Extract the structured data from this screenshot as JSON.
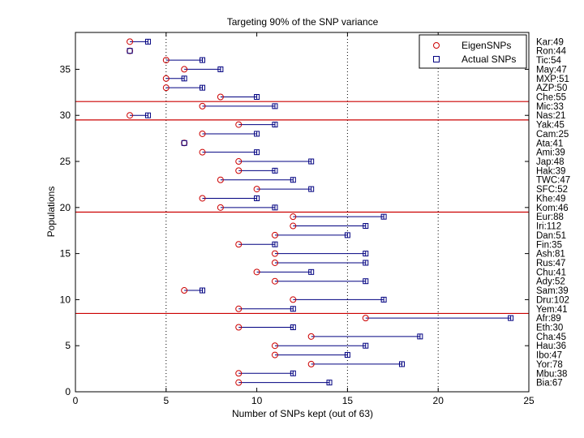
{
  "chart_data": {
    "type": "scatter",
    "title": "Targeting 90% of the SNP variance",
    "xlabel": "Number of SNPs kept (out of 63)",
    "ylabel": "Populations",
    "xlim": [
      0,
      25
    ],
    "ylim": [
      0,
      39
    ],
    "x_ticks": [
      "0",
      "5",
      "10",
      "15",
      "20",
      "25"
    ],
    "y_ticks": [
      "0",
      "5",
      "10",
      "15",
      "20",
      "25",
      "30",
      "35"
    ],
    "legend": {
      "placement": "top-right",
      "entries": [
        {
          "label": "EigenSNPs",
          "marker": "circle",
          "color": "#cc0000"
        },
        {
          "label": "Actual SNPs",
          "marker": "square",
          "color": "#000080"
        }
      ]
    },
    "vlines_dotted_x": [
      5,
      15,
      20
    ],
    "hlines_red_y": [
      8.5,
      19.5,
      29.5,
      31.5
    ],
    "colors": {
      "eigen": "#cc0000",
      "actual": "#000080",
      "separator": "#cc0000"
    },
    "populations": [
      {
        "label": "Bia:67",
        "y": 1,
        "eigen": 9,
        "actual": 14
      },
      {
        "label": "Mbu:38",
        "y": 2,
        "eigen": 9,
        "actual": 12
      },
      {
        "label": "Yor:78",
        "y": 3,
        "eigen": 13,
        "actual": 18
      },
      {
        "label": "Ibo:47",
        "y": 4,
        "eigen": 11,
        "actual": 15
      },
      {
        "label": "Hau:36",
        "y": 5,
        "eigen": 11,
        "actual": 16
      },
      {
        "label": "Cha:45",
        "y": 6,
        "eigen": 13,
        "actual": 19
      },
      {
        "label": "Eth:30",
        "y": 7,
        "eigen": 9,
        "actual": 12
      },
      {
        "label": "Afr:89",
        "y": 8,
        "eigen": 16,
        "actual": 24
      },
      {
        "label": "Yem:41",
        "y": 9,
        "eigen": 9,
        "actual": 12
      },
      {
        "label": "Dru:102",
        "y": 10,
        "eigen": 12,
        "actual": 17
      },
      {
        "label": "Sam:39",
        "y": 11,
        "eigen": 6,
        "actual": 7
      },
      {
        "label": "Ady:52",
        "y": 12,
        "eigen": 11,
        "actual": 16
      },
      {
        "label": "Chu:41",
        "y": 13,
        "eigen": 10,
        "actual": 13
      },
      {
        "label": "Rus:47",
        "y": 14,
        "eigen": 11,
        "actual": 16
      },
      {
        "label": "Ash:81",
        "y": 15,
        "eigen": 11,
        "actual": 16
      },
      {
        "label": "Fin:35",
        "y": 16,
        "eigen": 9,
        "actual": 11
      },
      {
        "label": "Dan:51",
        "y": 17,
        "eigen": 11,
        "actual": 15
      },
      {
        "label": "Iri:112",
        "y": 18,
        "eigen": 12,
        "actual": 16
      },
      {
        "label": "Eur:88",
        "y": 19,
        "eigen": 12,
        "actual": 17
      },
      {
        "label": "Kom:46",
        "y": 20,
        "eigen": 8,
        "actual": 11
      },
      {
        "label": "Khe:49",
        "y": 21,
        "eigen": 7,
        "actual": 10
      },
      {
        "label": "SFC:52",
        "y": 22,
        "eigen": 10,
        "actual": 13
      },
      {
        "label": "TWC:47",
        "y": 23,
        "eigen": 8,
        "actual": 12
      },
      {
        "label": "Hak:39",
        "y": 24,
        "eigen": 9,
        "actual": 11
      },
      {
        "label": "Jap:48",
        "y": 25,
        "eigen": 9,
        "actual": 13
      },
      {
        "label": "Ami:39",
        "y": 26,
        "eigen": 7,
        "actual": 10
      },
      {
        "label": "Ata:41",
        "y": 27,
        "eigen": 6,
        "actual": 6
      },
      {
        "label": "Cam:25",
        "y": 28,
        "eigen": 7,
        "actual": 10
      },
      {
        "label": "Yak:45",
        "y": 29,
        "eigen": 9,
        "actual": 11
      },
      {
        "label": "Nas:21",
        "y": 30,
        "eigen": 3,
        "actual": 4
      },
      {
        "label": "Mic:33",
        "y": 31,
        "eigen": 7,
        "actual": 11
      },
      {
        "label": "Che:55",
        "y": 32,
        "eigen": 8,
        "actual": 10
      },
      {
        "label": "AZP:50",
        "y": 33,
        "eigen": 5,
        "actual": 7
      },
      {
        "label": "MXP:51",
        "y": 34,
        "eigen": 5,
        "actual": 6
      },
      {
        "label": "May:47",
        "y": 35,
        "eigen": 6,
        "actual": 8
      },
      {
        "label": "Tic:54",
        "y": 36,
        "eigen": 5,
        "actual": 7
      },
      {
        "label": "Ron:44",
        "y": 37,
        "eigen": 3,
        "actual": 3
      },
      {
        "label": "Kar:49",
        "y": 38,
        "eigen": 3,
        "actual": 4
      }
    ]
  }
}
